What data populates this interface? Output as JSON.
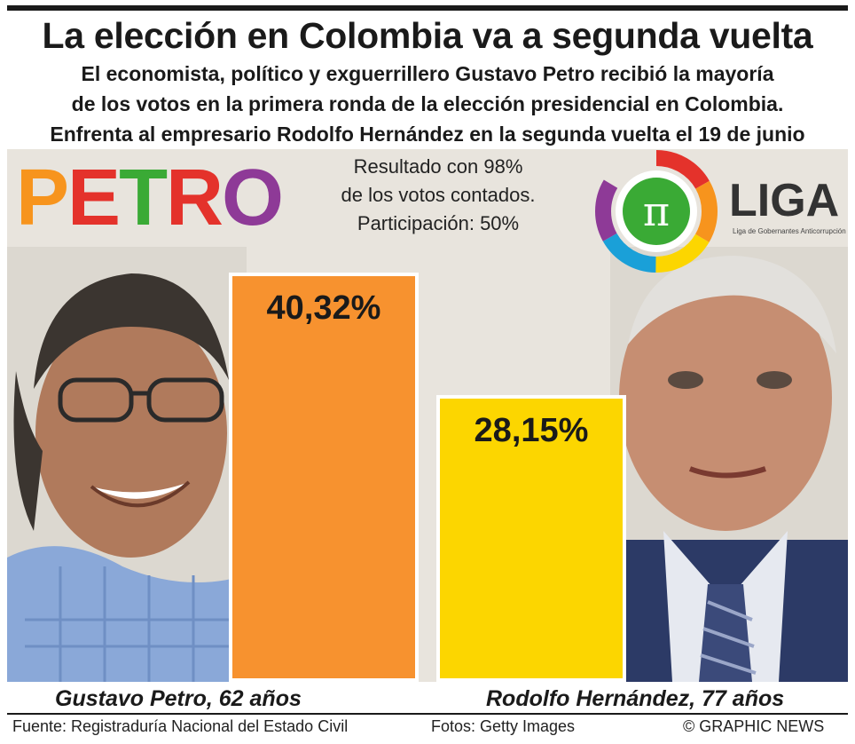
{
  "header": {
    "title": "La elección en Colombia va a segunda vuelta",
    "subtitle_lines": [
      "El economista, político y exguerrillero Gustavo Petro recibió la mayoría",
      "de los votos en la primera ronda de la elección presidencial en Colombia.",
      "Enfrenta al empresario Rodolfo Hernández en la segunda vuelta el 19 de junio"
    ]
  },
  "note_lines": [
    "Resultado con 98%",
    "de los votos contados.",
    "Participación: 50%"
  ],
  "logos": {
    "petro": {
      "letters": [
        "P",
        "E",
        "T",
        "R",
        "O"
      ],
      "colors": [
        "#f7941d",
        "#e4322b",
        "#3aaa35",
        "#e4322b",
        "#8e3a97"
      ]
    },
    "liga": {
      "symbol": "π",
      "name": "LIGA",
      "tagline": "Liga de Gobernantes Anticorrupción"
    }
  },
  "chart_data": {
    "type": "bar",
    "categories": [
      "Gustavo Petro, 62 años",
      "Rodolfo Hernández, 77 años"
    ],
    "values": [
      40.32,
      28.15
    ],
    "value_labels": [
      "40,32%",
      "28,15%"
    ],
    "colors": [
      "#f7922f",
      "#fcd600"
    ],
    "ylim": [
      0,
      42
    ],
    "grid": false
  },
  "footer": {
    "source": "Fuente: Registraduría Nacional del Estado Civil",
    "photos": "Fotos: Getty Images",
    "credit": "© GRAPHIC NEWS"
  }
}
